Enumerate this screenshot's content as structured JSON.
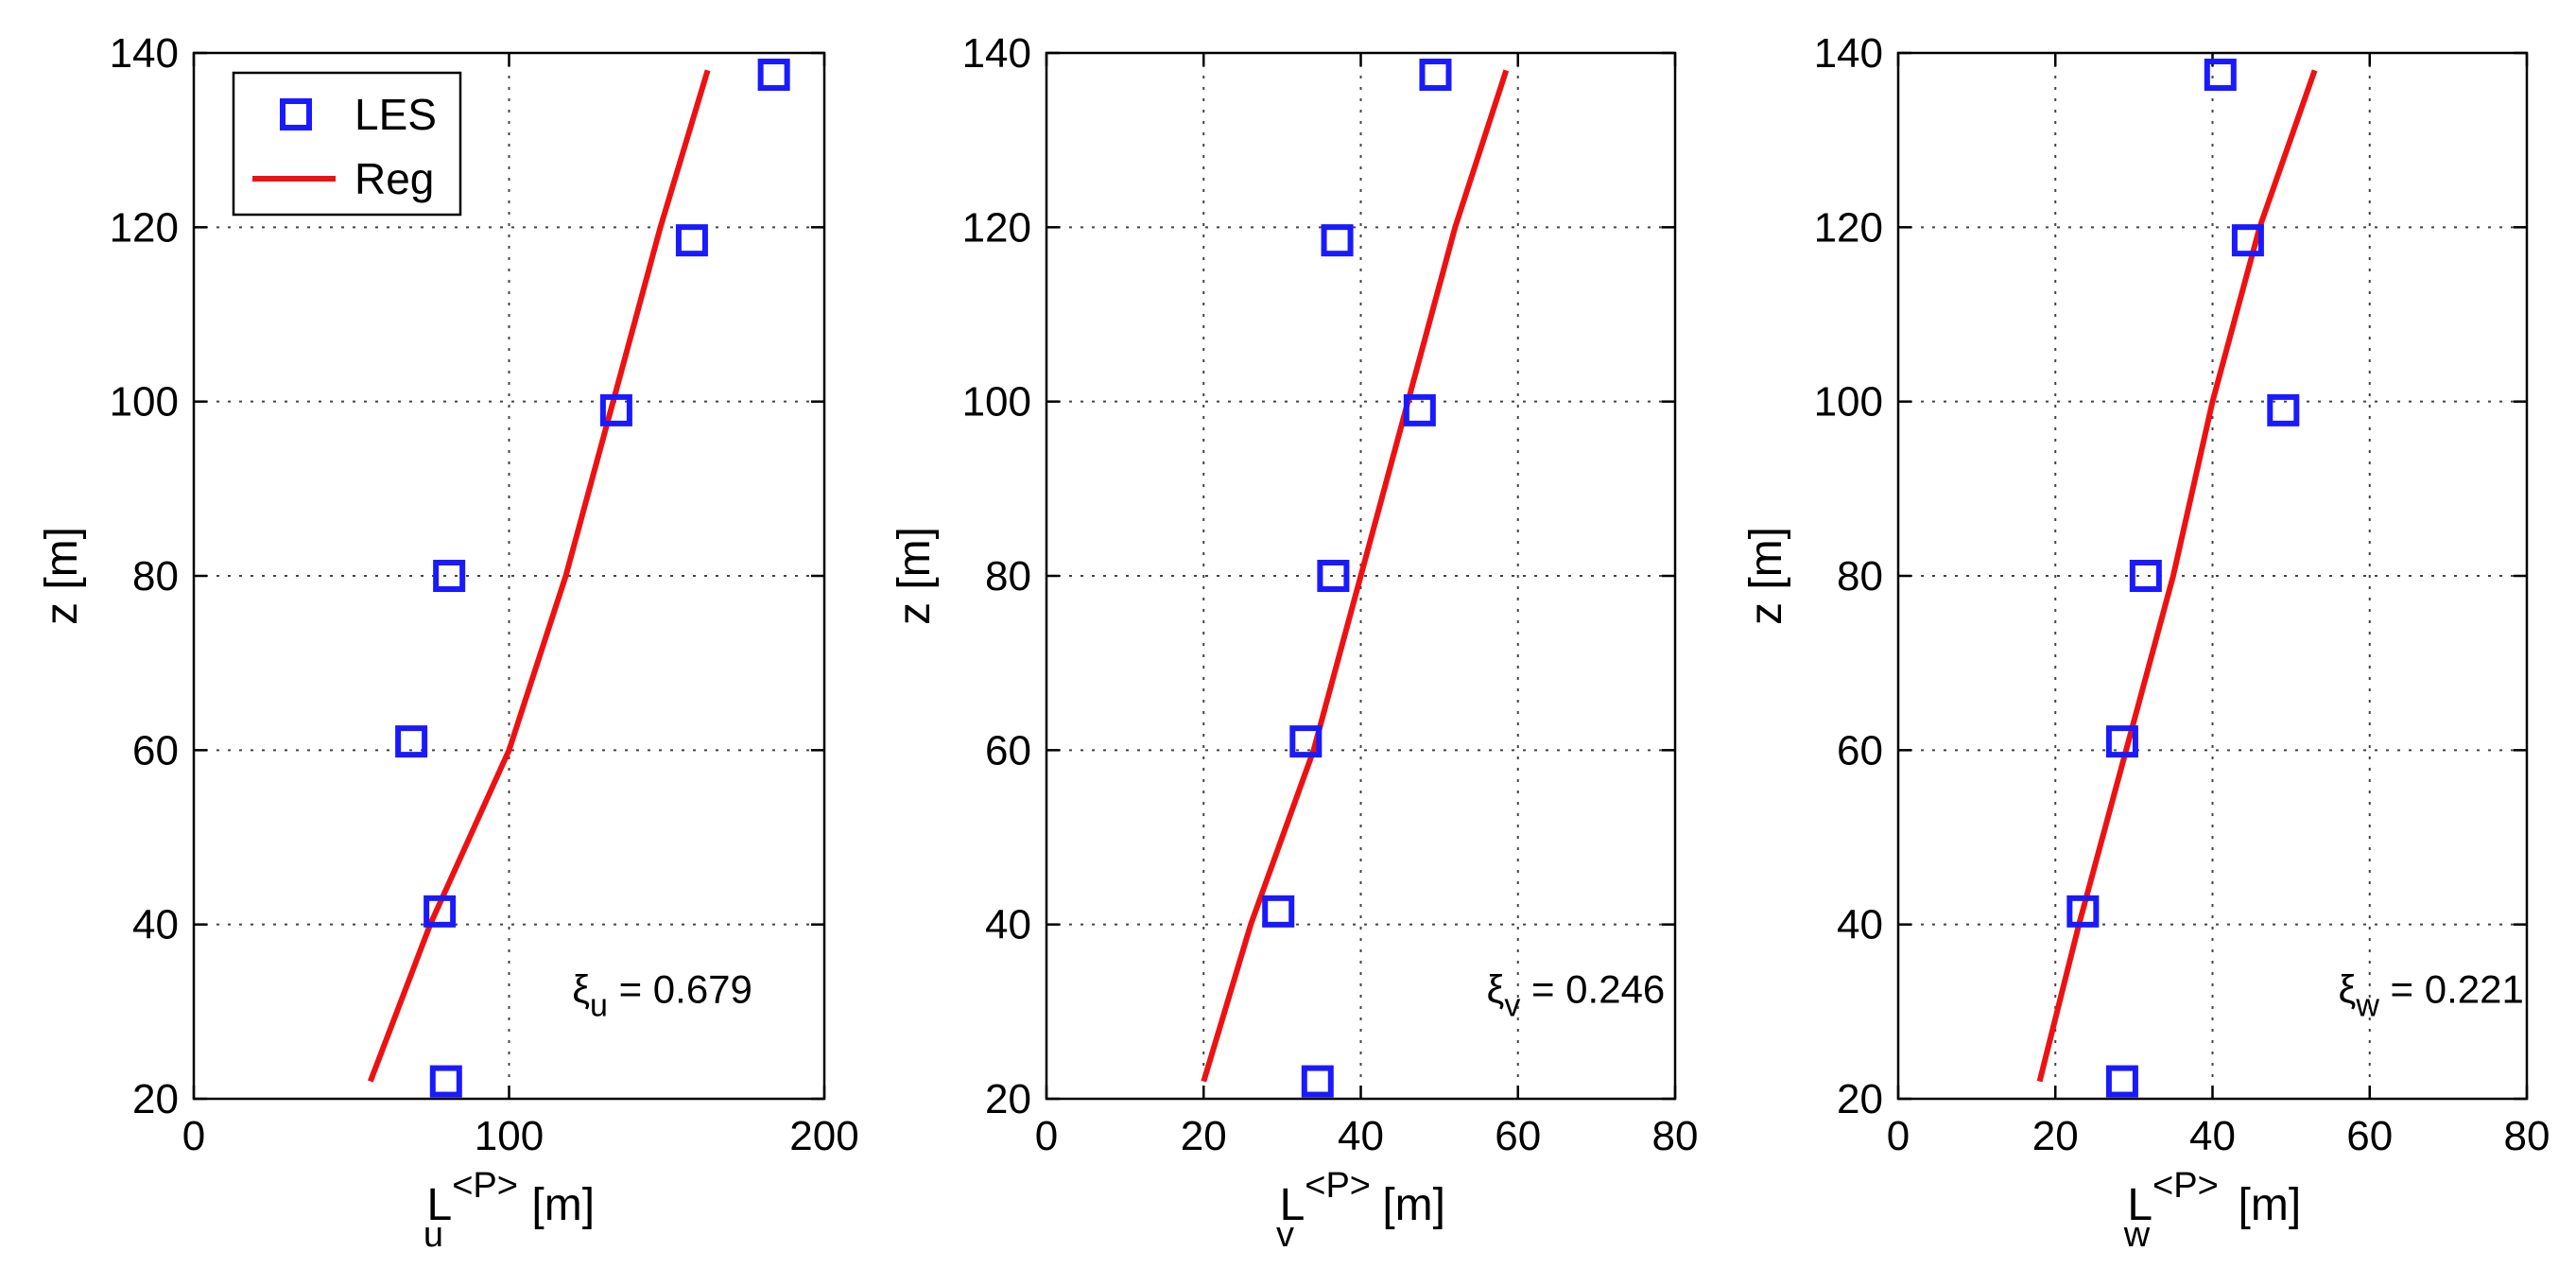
{
  "chart_data": [
    {
      "type": "scatter",
      "ylabel": "z [m]",
      "xlabel": {
        "base": "L",
        "sup": "<P>",
        "sub": "u",
        "unit": " [m]"
      },
      "xlim": [
        0,
        200
      ],
      "ylim": [
        20,
        140
      ],
      "xticks": [
        0,
        100,
        200
      ],
      "yticks": [
        20,
        40,
        60,
        80,
        100,
        120,
        140
      ],
      "grid": true,
      "annotation": {
        "greek": "ξ",
        "sub": "u",
        "text": " = 0.679",
        "at": [
          120,
          31
        ]
      },
      "legend": {
        "placement": "top-left",
        "entries": [
          "LES",
          "Reg"
        ]
      },
      "series": [
        {
          "name": "LES",
          "kind": "marker",
          "color": "#1a1aff",
          "points": [
            [
              80,
              22
            ],
            [
              78,
              41.5
            ],
            [
              69,
              61
            ],
            [
              81,
              80
            ],
            [
              134,
              99
            ],
            [
              158,
              118.5
            ],
            [
              184,
              137.5
            ]
          ]
        },
        {
          "name": "Reg",
          "kind": "line",
          "color": "#ee1111",
          "points": [
            [
              56,
              22
            ],
            [
              75,
              40
            ],
            [
              100,
              60
            ],
            [
              118,
              80
            ],
            [
              133,
              100
            ],
            [
              148,
              120
            ],
            [
              163,
              138
            ]
          ]
        }
      ]
    },
    {
      "type": "scatter",
      "ylabel": "z [m]",
      "xlabel": {
        "base": "L",
        "sup": "<P>",
        "sub": "v",
        "unit": " [m]"
      },
      "xlim": [
        0,
        80
      ],
      "ylim": [
        20,
        140
      ],
      "xticks": [
        0,
        20,
        40,
        60,
        80
      ],
      "yticks": [
        20,
        40,
        60,
        80,
        100,
        120,
        140
      ],
      "grid": true,
      "annotation": {
        "greek": "ξ",
        "sub": "v",
        "text": " = 0.246",
        "at": [
          56,
          31
        ]
      },
      "series": [
        {
          "name": "LES",
          "kind": "marker",
          "color": "#1a1aff",
          "points": [
            [
              34.5,
              22
            ],
            [
              29.5,
              41.5
            ],
            [
              33,
              61
            ],
            [
              36.5,
              80
            ],
            [
              47.5,
              99
            ],
            [
              37,
              118.5
            ],
            [
              49.5,
              137.5
            ]
          ]
        },
        {
          "name": "Reg",
          "kind": "line",
          "color": "#ee1111",
          "points": [
            [
              20,
              22
            ],
            [
              26,
              40
            ],
            [
              34,
              60
            ],
            [
              40,
              80
            ],
            [
              46,
              100
            ],
            [
              52,
              120
            ],
            [
              58.5,
              138
            ]
          ]
        }
      ]
    },
    {
      "type": "scatter",
      "ylabel": "z [m]",
      "xlabel": {
        "base": "L",
        "sup": "<P>",
        "sub": "w",
        "unit": " [m]"
      },
      "xlim": [
        0,
        80
      ],
      "ylim": [
        20,
        140
      ],
      "xticks": [
        0,
        20,
        40,
        60,
        80
      ],
      "yticks": [
        20,
        40,
        60,
        80,
        100,
        120,
        140
      ],
      "grid": true,
      "annotation": {
        "greek": "ξ",
        "sub": "w",
        "text": " = 0.221",
        "at": [
          56,
          31
        ]
      },
      "series": [
        {
          "name": "LES",
          "kind": "marker",
          "color": "#1a1aff",
          "points": [
            [
              28.5,
              22
            ],
            [
              23.5,
              41.5
            ],
            [
              28.5,
              61
            ],
            [
              31.5,
              80
            ],
            [
              49,
              99
            ],
            [
              44.5,
              118.5
            ],
            [
              41,
              137.5
            ]
          ]
        },
        {
          "name": "Reg",
          "kind": "line",
          "color": "#ee1111",
          "points": [
            [
              18,
              22
            ],
            [
              23,
              40
            ],
            [
              29,
              60
            ],
            [
              35,
              80
            ],
            [
              40,
              100
            ],
            [
              46,
              120
            ],
            [
              53,
              138
            ]
          ]
        }
      ]
    }
  ]
}
